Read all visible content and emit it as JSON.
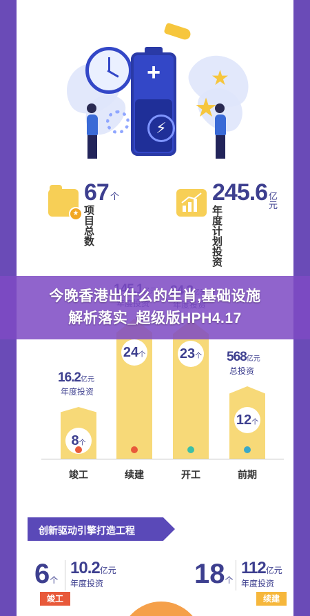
{
  "banner": {
    "line1": "今晚香港出什么的生肖,基础设施",
    "line2": "解析落实_超级版HPH4.17"
  },
  "stats": {
    "projects": {
      "value": "67",
      "unit": "个",
      "label": "项目总数"
    },
    "investment": {
      "value": "245.6",
      "unit": "亿元",
      "label": "年度计划投资"
    }
  },
  "chart_data": {
    "type": "bar",
    "categories": [
      "竣工",
      "续建",
      "开工",
      "前期"
    ],
    "series": [
      {
        "name": "年度投资",
        "values": [
          16.2,
          145.1,
          84.3,
          568
        ]
      },
      {
        "name": "项目数",
        "values": [
          8,
          24,
          23,
          12
        ]
      }
    ],
    "value_labels": [
      {
        "value": "16.2",
        "unit": "亿元",
        "sub": "年度投资",
        "count": "8",
        "count_unit": "个"
      },
      {
        "value": "145.1",
        "unit": "亿元",
        "sub": "年度投资",
        "count": "24",
        "count_unit": "个"
      },
      {
        "value": "84.3",
        "unit": "亿元",
        "sub": "年度投资",
        "count": "23",
        "count_unit": "个"
      },
      {
        "value": "568",
        "unit": "亿元",
        "sub": "总投资",
        "count": "12",
        "count_unit": "个"
      }
    ],
    "colors": {
      "bar": "#f7d978",
      "dots": [
        "#e8593a",
        "#e8593a",
        "#3cbfa6",
        "#3aa8c8"
      ]
    }
  },
  "section": {
    "title": "创新驱动引擎打造工程"
  },
  "bottom": {
    "left": {
      "count": "6",
      "count_unit": "个",
      "value": "10.2",
      "unit": "亿元",
      "label": "年度投资",
      "tag": "竣工"
    },
    "right": {
      "count": "18",
      "count_unit": "个",
      "value": "112",
      "unit": "亿元",
      "label": "年度投资",
      "tag": "续建"
    }
  },
  "colors": {
    "frame": "#6a4bb7",
    "primary_text": "#3d3f8f",
    "accent_yellow": "#f7d978",
    "banner_overlay": "#7e4bc4",
    "tag_red": "#e8593a",
    "tag_yellow": "#f6b73c"
  }
}
